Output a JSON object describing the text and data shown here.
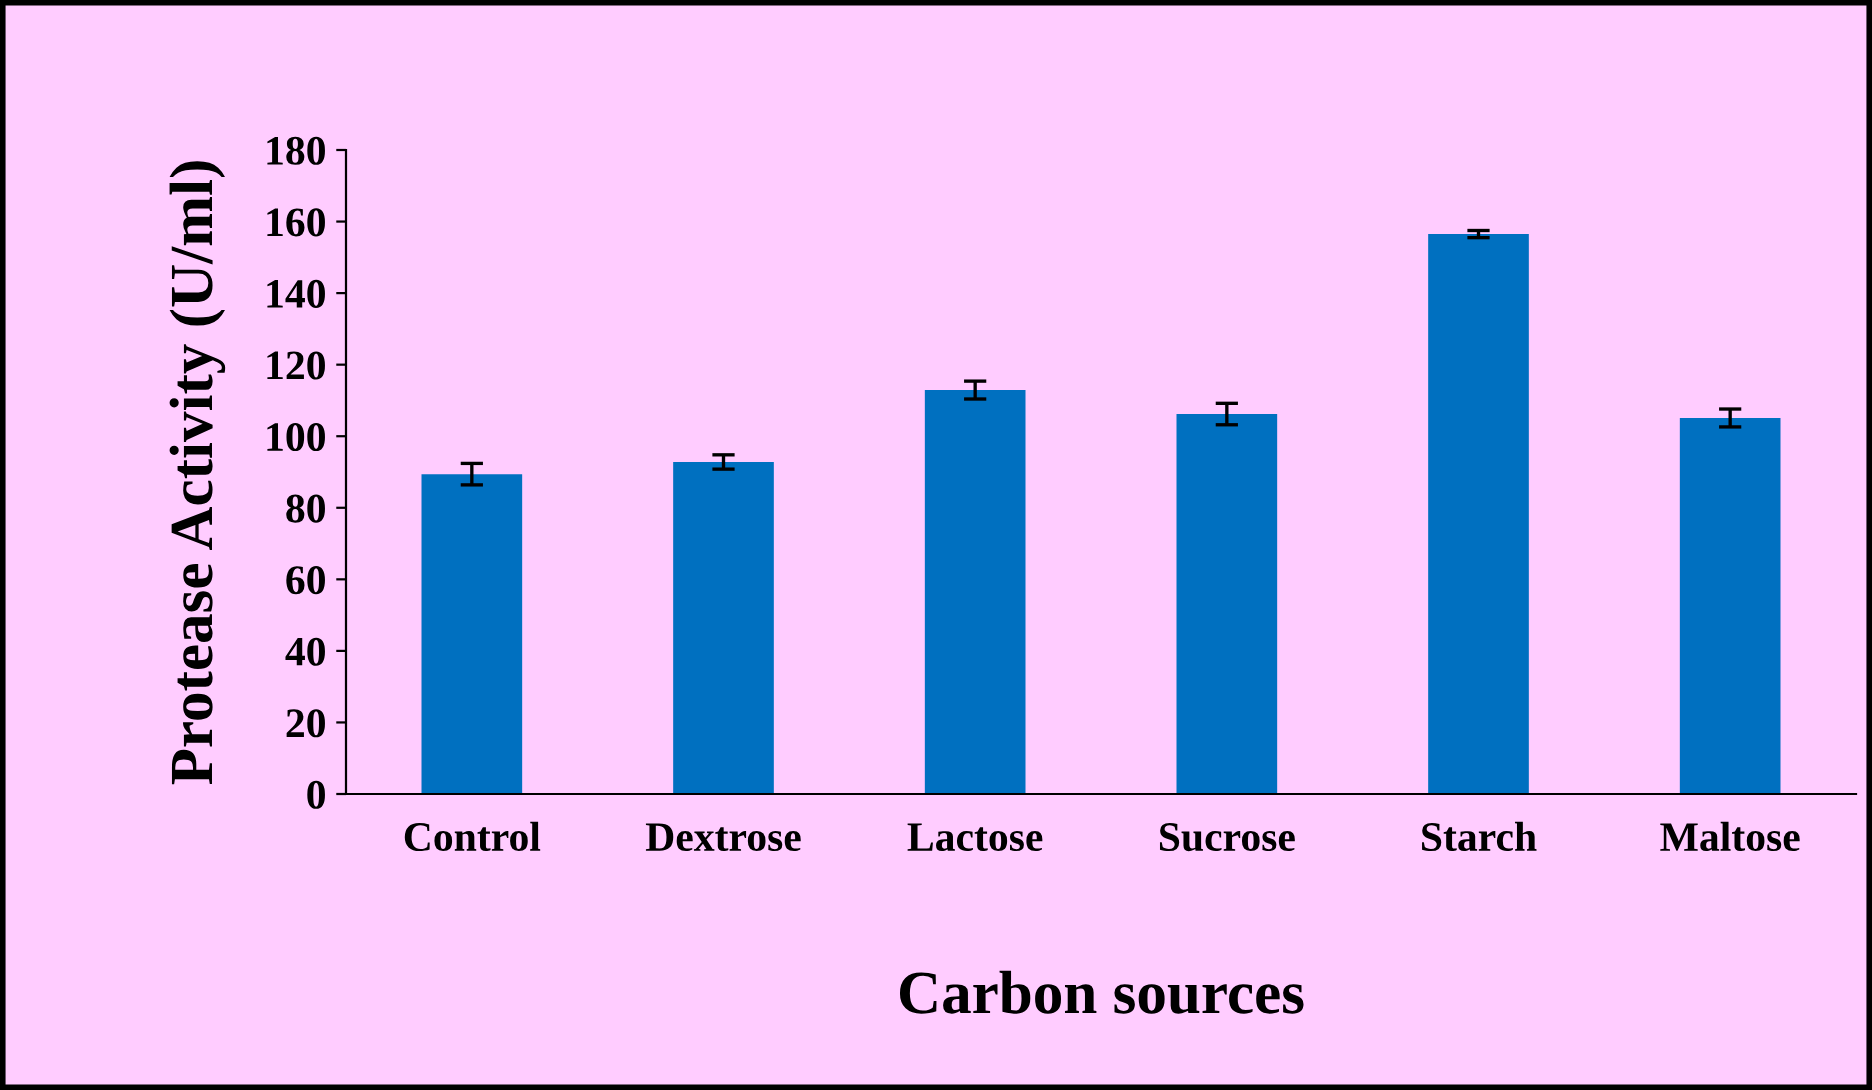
{
  "chart_data": {
    "type": "bar",
    "xlabel": "Carbon sources",
    "ylabel": "Protease Activity (U/ml)",
    "categories": [
      "Control",
      "Dextrose",
      "Lactose",
      "Sucrose",
      "Starch",
      "Maltose"
    ],
    "values": [
      89.4,
      92.8,
      112.9,
      106.2,
      156.5,
      105.1
    ],
    "errors": [
      3,
      2,
      2.5,
      3,
      1,
      2.5
    ],
    "color": "#0070c0",
    "ylim": [
      0,
      180
    ],
    "yticks": [
      0,
      20,
      40,
      60,
      80,
      100,
      120,
      140,
      160,
      180
    ],
    "grid": false,
    "legend": false
  }
}
